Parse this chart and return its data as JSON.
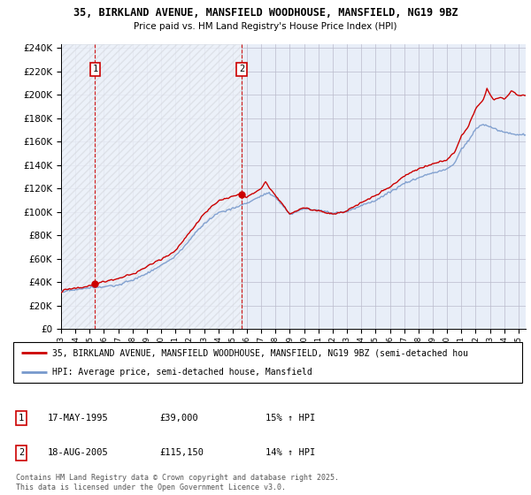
{
  "title": "35, BIRKLAND AVENUE, MANSFIELD WOODHOUSE, MANSFIELD, NG19 9BZ",
  "subtitle": "Price paid vs. HM Land Registry's House Price Index (HPI)",
  "copyright": "Contains HM Land Registry data © Crown copyright and database right 2025.\nThis data is licensed under the Open Government Licence v3.0.",
  "legend_line1": "35, BIRKLAND AVENUE, MANSFIELD WOODHOUSE, MANSFIELD, NG19 9BZ (semi-detached hou",
  "legend_line2": "HPI: Average price, semi-detached house, Mansfield",
  "sale1_date": "17-MAY-1995",
  "sale1_price": "£39,000",
  "sale1_hpi": "15% ↑ HPI",
  "sale1_year": 1995.38,
  "sale1_value": 39000,
  "sale2_date": "18-AUG-2005",
  "sale2_price": "£115,150",
  "sale2_hpi": "14% ↑ HPI",
  "sale2_year": 2005.63,
  "sale2_value": 115150,
  "xmin": 1993,
  "xmax": 2025.5,
  "ymin": 0,
  "ymax": 240000,
  "yticks": [
    0,
    20000,
    40000,
    60000,
    80000,
    100000,
    120000,
    140000,
    160000,
    180000,
    200000,
    220000,
    240000
  ],
  "plot_bg": "#e8eef8",
  "hatch_color": "#aaaaaa",
  "red_color": "#cc0000",
  "blue_color": "#7799cc",
  "grid_color": "#bbbbcc"
}
